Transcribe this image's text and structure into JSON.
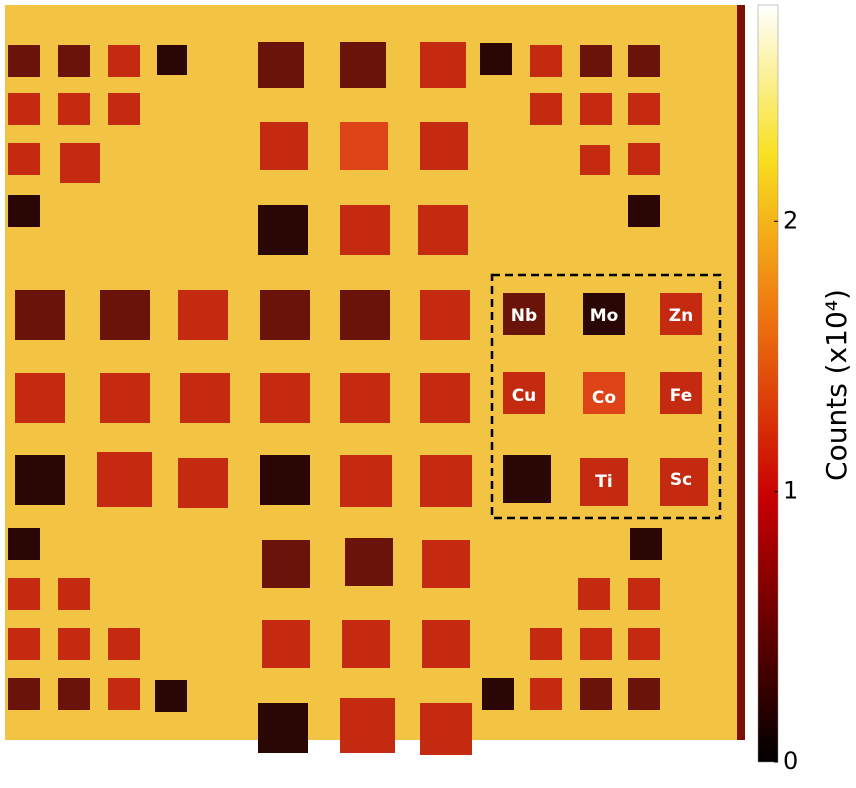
{
  "colorbar": {
    "title": "Counts (x10⁴)",
    "lim": [
      0,
      2.8
    ],
    "ticks": [
      0,
      1,
      2
    ]
  },
  "labels": [
    "Nb",
    "Mo",
    "Zn",
    "Cu",
    "Co",
    "Fe",
    "Ti",
    "Sc"
  ]
}
